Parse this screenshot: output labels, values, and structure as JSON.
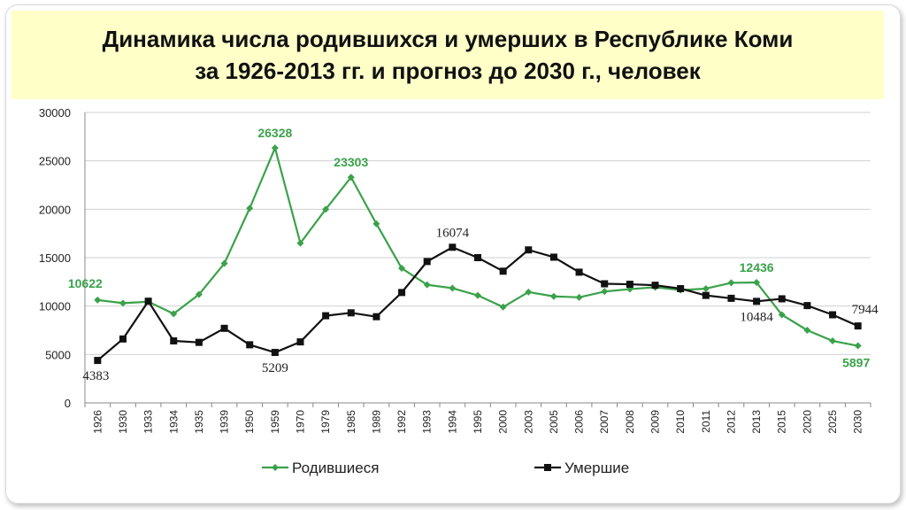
{
  "slide": {
    "title_line1": "Динамика числа родившихся и умерших в Республике Коми",
    "title_line2": "за 1926-2013 гг. и прогноз до 2030 г.,  человек"
  },
  "colors": {
    "births": "#3aa24a",
    "deaths": "#111111",
    "title_bg": "#ffffc8",
    "grid": "#d0d0d0"
  },
  "chart_data": {
    "type": "line",
    "title": "Динамика числа родившихся и умерших в Республике Коми за 1926-2013 гг. и прогноз до 2030 г.,  человек",
    "xlabel": "",
    "ylabel": "",
    "ylim": [
      0,
      30000
    ],
    "yticks": [
      0,
      5000,
      10000,
      15000,
      20000,
      25000,
      30000
    ],
    "grid": true,
    "legend_position": "bottom",
    "categories": [
      "1926",
      "1930",
      "1933",
      "1934",
      "1935",
      "1939",
      "1950",
      "1959",
      "1970",
      "1979",
      "1985",
      "1989",
      "1992",
      "1993",
      "1994",
      "1995",
      "2000",
      "2003",
      "2005",
      "2006",
      "2007",
      "2008",
      "2009",
      "2010",
      "2011",
      "2012",
      "2013",
      "2015",
      "2020",
      "2025",
      "2030"
    ],
    "series": [
      {
        "name": "Родившиеся",
        "marker": "diamond",
        "values": [
          10622,
          10300,
          10450,
          9200,
          11200,
          14400,
          20100,
          26328,
          16500,
          20000,
          23303,
          18500,
          13900,
          12200,
          11850,
          11100,
          9900,
          11450,
          11000,
          10900,
          11500,
          11750,
          11950,
          11650,
          11800,
          12400,
          12436,
          9100,
          7500,
          6400,
          5897
        ]
      },
      {
        "name": "Умершие",
        "marker": "square",
        "values": [
          4383,
          6600,
          10500,
          6400,
          6250,
          7700,
          6000,
          5209,
          6300,
          9000,
          9300,
          8900,
          11400,
          14600,
          16074,
          15000,
          13600,
          15800,
          15050,
          13500,
          12300,
          12250,
          12150,
          11800,
          11100,
          10800,
          10484,
          10750,
          10050,
          9100,
          7944
        ]
      }
    ],
    "annotations": [
      {
        "series": 0,
        "category": "1926",
        "text": "10622",
        "placement": "above-left"
      },
      {
        "series": 0,
        "category": "1959",
        "text": "26328",
        "placement": "above"
      },
      {
        "series": 0,
        "category": "1985",
        "text": "23303",
        "placement": "above"
      },
      {
        "series": 0,
        "category": "2013",
        "text": "12436",
        "placement": "above"
      },
      {
        "series": 0,
        "category": "2030",
        "text": "5897",
        "placement": "below"
      },
      {
        "series": 1,
        "category": "1926",
        "text": "4383",
        "placement": "below"
      },
      {
        "series": 1,
        "category": "1959",
        "text": "5209",
        "placement": "below"
      },
      {
        "series": 1,
        "category": "1994",
        "text": "16074",
        "placement": "above"
      },
      {
        "series": 1,
        "category": "2013",
        "text": "10484",
        "placement": "below"
      },
      {
        "series": 1,
        "category": "2030",
        "text": "7944",
        "placement": "above"
      }
    ]
  }
}
